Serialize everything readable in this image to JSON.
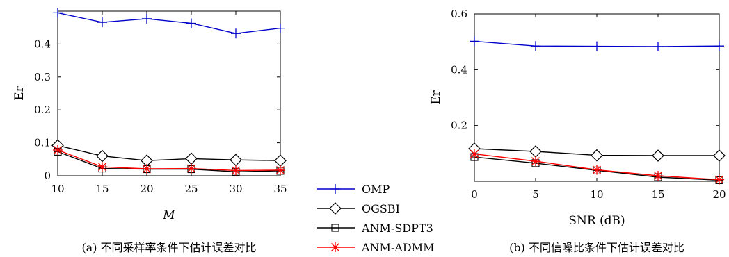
{
  "chart_data": [
    {
      "type": "line",
      "caption": "(a) 不同采样率条件下估计误差对比",
      "xlabel": "M",
      "ylabel": "Er",
      "x": [
        10,
        15,
        20,
        25,
        30,
        35
      ],
      "xlim": [
        10,
        35
      ],
      "ylim": [
        0,
        0.5
      ],
      "xticks": [
        "10",
        "15",
        "20",
        "25",
        "30",
        "35"
      ],
      "yticks": [
        0,
        0.1,
        0.2,
        0.3,
        0.4
      ],
      "ytick_labels": [
        "0",
        "0.1",
        "0.2",
        "0.3",
        "0.4"
      ],
      "grid": false,
      "series": [
        {
          "name": "OMP",
          "values": [
            0.495,
            0.466,
            0.477,
            0.463,
            0.432,
            0.448
          ]
        },
        {
          "name": "OGSBI",
          "values": [
            0.092,
            0.06,
            0.046,
            0.052,
            0.048,
            0.046
          ]
        },
        {
          "name": "ANM-SDPT3",
          "values": [
            0.073,
            0.022,
            0.02,
            0.02,
            0.012,
            0.015
          ]
        },
        {
          "name": "ANM-ADMM",
          "values": [
            0.078,
            0.027,
            0.021,
            0.022,
            0.016,
            0.017
          ]
        }
      ]
    },
    {
      "type": "line",
      "caption": "(b) 不同信噪比条件下估计误差对比",
      "xlabel": "SNR (dB)",
      "ylabel": "Er",
      "x": [
        0,
        5,
        10,
        15,
        20
      ],
      "xlim": [
        0,
        20
      ],
      "ylim": [
        0,
        0.6
      ],
      "xticks": [
        "0",
        "5",
        "10",
        "15",
        "20"
      ],
      "yticks": [
        0.2,
        0.4,
        0.6
      ],
      "ytick_labels": [
        "0.2",
        "0.4",
        "0.6"
      ],
      "grid": false,
      "series": [
        {
          "name": "OMP",
          "values": [
            0.502,
            0.485,
            0.484,
            0.483,
            0.485
          ]
        },
        {
          "name": "OGSBI",
          "values": [
            0.117,
            0.107,
            0.093,
            0.092,
            0.092
          ]
        },
        {
          "name": "ANM-SDPT3",
          "values": [
            0.087,
            0.065,
            0.039,
            0.015,
            0.004
          ]
        },
        {
          "name": "ANM-ADMM",
          "values": [
            0.098,
            0.072,
            0.041,
            0.02,
            0.006
          ]
        }
      ]
    }
  ],
  "legend": {
    "placement": "bottom-center",
    "entries": [
      {
        "label": "OMP",
        "color": "#0000cc",
        "marker": "plus"
      },
      {
        "label": "OGSBI",
        "color": "#000000",
        "marker": "diamond"
      },
      {
        "label": "ANM-SDPT3",
        "color": "#000000",
        "marker": "square"
      },
      {
        "label": "ANM-ADMM",
        "color": "#ff0000",
        "marker": "asterisk"
      }
    ]
  },
  "colors": {
    "OMP": "#0000cc",
    "OGSBI": "#000000",
    "ANM-SDPT3": "#000000",
    "ANM-ADMM": "#ff0000"
  }
}
